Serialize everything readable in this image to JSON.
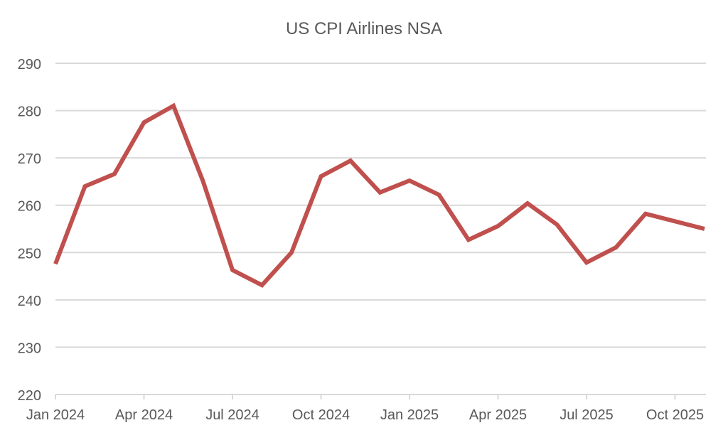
{
  "chart_data": {
    "type": "line",
    "title": "US CPI Airlines NSA",
    "xlabel": "",
    "ylabel": "",
    "ylim": [
      220,
      290
    ],
    "yticks": [
      220,
      230,
      240,
      250,
      260,
      270,
      280,
      290
    ],
    "xtick_labels": [
      {
        "label": "Jan 2024",
        "index": 0
      },
      {
        "label": "Apr 2024",
        "index": 3
      },
      {
        "label": "Jul 2024",
        "index": 6
      },
      {
        "label": "Oct 2024",
        "index": 9
      },
      {
        "label": "Jan 2025",
        "index": 12
      },
      {
        "label": "Apr 2025",
        "index": 15
      },
      {
        "label": "Jul 2025",
        "index": 18
      },
      {
        "label": "Oct 2025",
        "index": 21
      }
    ],
    "xlim": [
      0,
      22
    ],
    "grid": true,
    "series": [
      {
        "name": "US CPI Airlines NSA",
        "color": "#c0504d",
        "points": [
          {
            "x": 0,
            "month": "Jan 2024",
            "y": 247.6
          },
          {
            "x": 1,
            "month": "Feb 2024",
            "y": 264.0
          },
          {
            "x": 2,
            "month": "Mar 2024",
            "y": 266.6
          },
          {
            "x": 3,
            "month": "Apr 2024",
            "y": 277.5
          },
          {
            "x": 4,
            "month": "May 2024",
            "y": 281.0
          },
          {
            "x": 5,
            "month": "Jun 2024",
            "y": 265.1
          },
          {
            "x": 6,
            "month": "Jul 2024",
            "y": 246.3
          },
          {
            "x": 7,
            "month": "Aug 2024",
            "y": 243.1
          },
          {
            "x": 8,
            "month": "Sep 2024",
            "y": 250.0
          },
          {
            "x": 9,
            "month": "Oct 2024",
            "y": 266.1
          },
          {
            "x": 10,
            "month": "Nov 2024",
            "y": 269.4
          },
          {
            "x": 11,
            "month": "Dec 2024",
            "y": 262.7
          },
          {
            "x": 12,
            "month": "Jan 2025",
            "y": 265.2
          },
          {
            "x": 13,
            "month": "Feb 2025",
            "y": 262.2
          },
          {
            "x": 14,
            "month": "Mar 2025",
            "y": 252.7
          },
          {
            "x": 15,
            "month": "Apr 2025",
            "y": 255.6
          },
          {
            "x": 16,
            "month": "May 2025",
            "y": 260.4
          },
          {
            "x": 17,
            "month": "Jun 2025",
            "y": 255.9
          },
          {
            "x": 18,
            "month": "Jul 2025",
            "y": 247.9
          },
          {
            "x": 19,
            "month": "Aug 2025",
            "y": 251.1
          },
          {
            "x": 20,
            "month": "Sep 2025",
            "y": 258.2
          },
          {
            "x": 22,
            "month": "Nov 2025",
            "y": 255.0
          }
        ]
      }
    ],
    "colors": {
      "grid": "#d9d9d9",
      "text": "#595959",
      "line": "#c0504d"
    }
  }
}
